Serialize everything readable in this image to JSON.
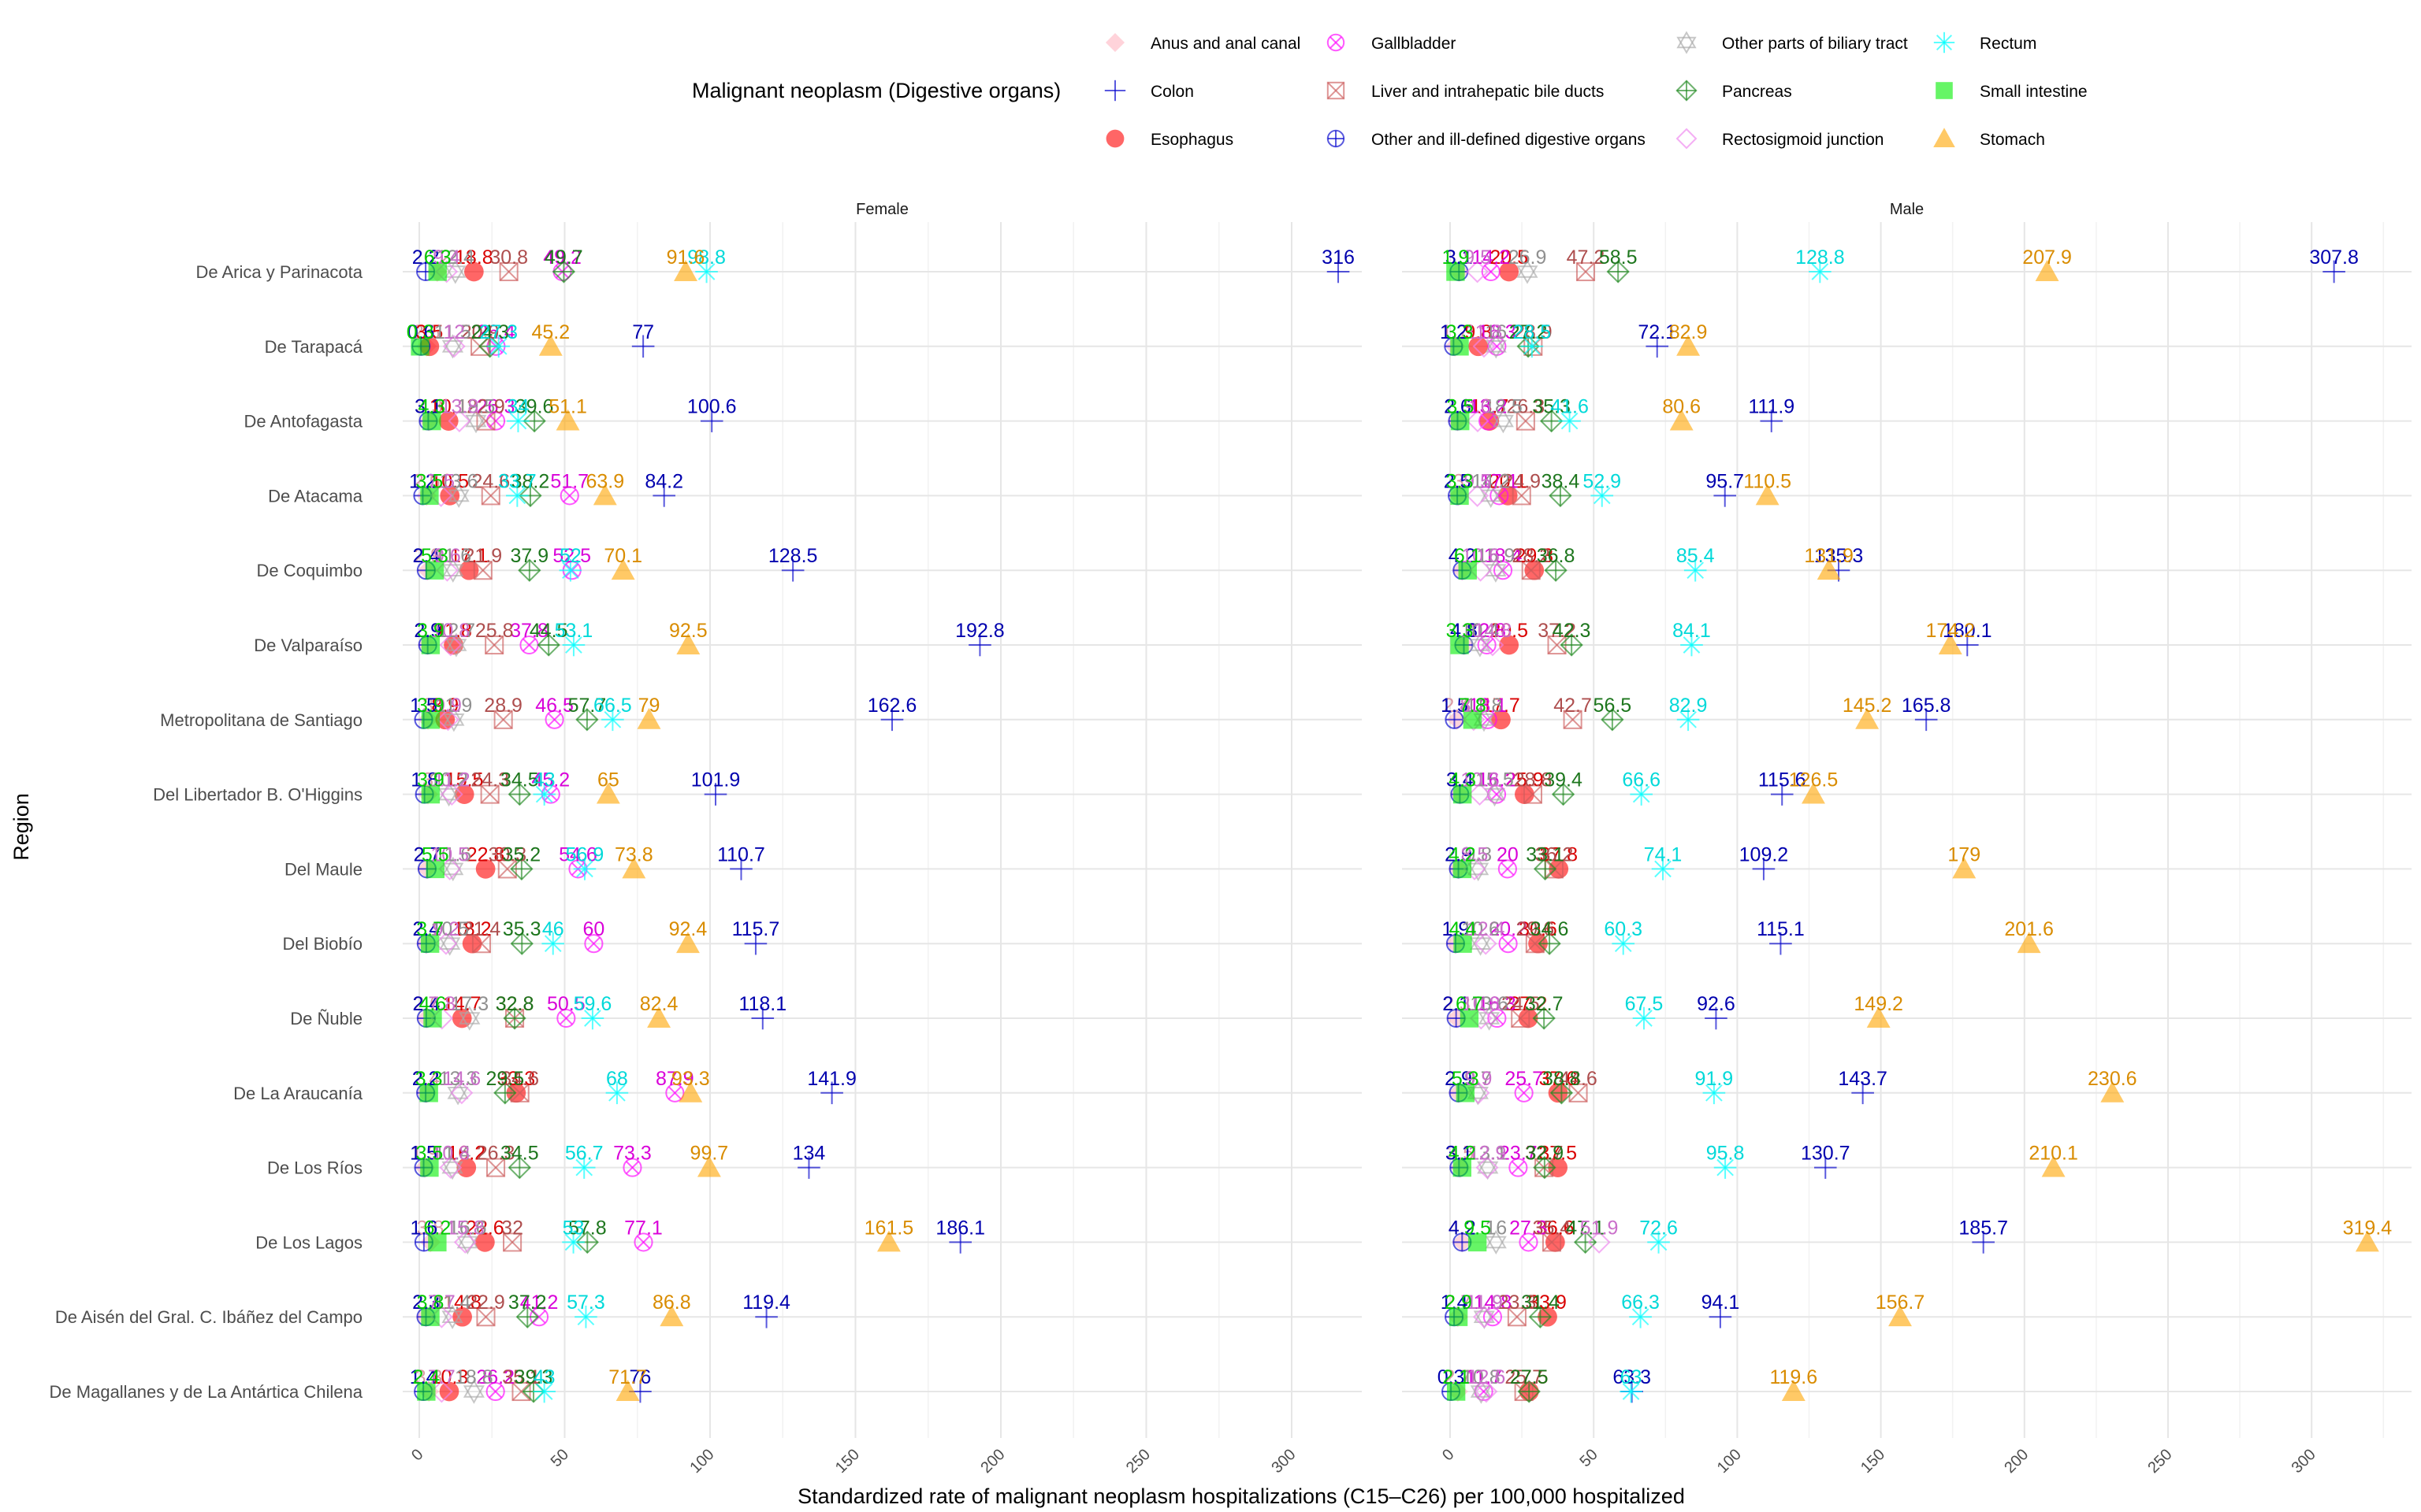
{
  "chart_data": {
    "type": "scatter",
    "title": "",
    "xlabel": "Standardized rate of malignant neoplasm hospitalizations (C15–C26) per 100,000 hospitalized",
    "ylabel": "Region",
    "xlim": [
      -8,
      330
    ],
    "xticks": [
      0,
      50,
      100,
      150,
      200,
      250,
      300
    ],
    "grid": true,
    "legend_title": "Malignant neoplasm (Digestive organs)",
    "legend_position": "top",
    "facets": [
      "Female",
      "Male"
    ],
    "regions": [
      "De Arica y Parinacota",
      "De Tarapacá",
      "De Antofagasta",
      "De Atacama",
      "De Coquimbo",
      "De Valparaíso",
      "Metropolitana de Santiago",
      "Del Libertador B. O'Higgins",
      "Del Maule",
      "Del Biobío",
      "De Ñuble",
      "De La Araucanía",
      "De Los Ríos",
      "De Los Lagos",
      "De Aisén del Gral. C. Ibáñez del Campo",
      "De Magallanes y de La Antártica Chilena"
    ],
    "series": [
      {
        "name": "Anus and anal canal",
        "color": "#ffb6c1",
        "shape": "diamond-filled",
        "Female": [
          6.2,
          2.5,
          3.3,
          2.5,
          2.9,
          2.9,
          3.0,
          3.0,
          2.7,
          2.4,
          2.6,
          2.4,
          1.9,
          3.8,
          2.3,
          3.3
        ],
        "Male": [
          3.1,
          1.7,
          2.6,
          3.0,
          4.2,
          4.8,
          2.4,
          3.4,
          2.9,
          1.9,
          2.3,
          2.9,
          3.5,
          4.2,
          2.7,
          2.7
        ]
      },
      {
        "name": "Colon",
        "color": "#0000cd",
        "shape": "plus",
        "Female": [
          316,
          77,
          100.6,
          84.2,
          128.5,
          192.8,
          162.6,
          101.9,
          110.7,
          115.7,
          118.1,
          141.9,
          134,
          186.1,
          119.4,
          76
        ],
        "Male": [
          307.8,
          72.1,
          111.9,
          95.7,
          135.3,
          180.1,
          165.8,
          115.6,
          109.2,
          115.1,
          92.6,
          143.7,
          130.7,
          185.7,
          94.1,
          63.3
        ]
      },
      {
        "name": "Esophagus",
        "color": "#ff0000",
        "shape": "circle-filled",
        "Female": [
          18.8,
          3.5,
          10.1,
          10.5,
          17.1,
          11.8,
          8.9,
          15.5,
          22.8,
          18.2,
          14.7,
          33.3,
          16.2,
          22.6,
          14.8,
          10.3
        ],
        "Male": [
          20.5,
          9.8,
          13.7,
          20.1,
          29.3,
          20.5,
          17.7,
          25.9,
          37.8,
          30.6,
          27.2,
          37.6,
          37.5,
          36.6,
          33.9,
          27.5
        ]
      },
      {
        "name": "Gallbladder",
        "color": "#ff00ff",
        "shape": "circle-x",
        "Female": [
          49.2,
          26.4,
          26.3,
          51.7,
          52.5,
          37.8,
          46.5,
          45.2,
          54.6,
          60,
          50.5,
          87.9,
          73.3,
          77.1,
          41.2,
          26.2
        ],
        "Male": [
          14.2,
          16.3,
          13.2,
          17.1,
          18.4,
          12.8,
          13.1,
          16.2,
          20,
          20.2,
          16.3,
          25.7,
          23.7,
          27.3,
          14.8,
          11.7
        ]
      },
      {
        "name": "Liver and intrahepatic bile ducts",
        "color": "#cd5c5c",
        "shape": "square-x",
        "Female": [
          30.8,
          20.9,
          22.9,
          24.6,
          21.9,
          25.8,
          28.9,
          24.3,
          30.3,
          21.4,
          32.8,
          34.6,
          26.3,
          32.0,
          22.9,
          35.1
        ],
        "Male": [
          47.2,
          28.9,
          26.3,
          24.9,
          28.2,
          37.2,
          42.7,
          28.8,
          36.2,
          29.6,
          24.5,
          44.6,
          32.7,
          35.4,
          23.3,
          25.7
        ]
      },
      {
        "name": "Other and ill-defined digestive organs",
        "color": "#0000cd",
        "shape": "circle-plus",
        "Female": [
          2.2,
          0.6,
          3.1,
          1.2,
          2.4,
          2.9,
          1.5,
          1.8,
          2.7,
          2.4,
          2.4,
          2.2,
          1.5,
          1.6,
          2.3,
          1.4
        ],
        "Male": [
          3.1,
          1.2,
          2.6,
          2.5,
          4.2,
          4.8,
          1.5,
          3.4,
          2.9,
          1.9,
          2.1,
          2.9,
          3.1,
          4.2,
          1.4,
          0.3
        ]
      },
      {
        "name": "Other parts of biliary tract",
        "color": "#a9a9a9",
        "shape": "hexagram",
        "Female": [
          12.4,
          11.5,
          19.5,
          13.6,
          11.6,
          12.7,
          11.9,
          10.2,
          11.6,
          10.5,
          17.3,
          13.3,
          11.4,
          16.6,
          11.4,
          18.8
        ],
        "Male": [
          26.9,
          16.0,
          18.5,
          14.2,
          15.9,
          10.4,
          11.8,
          15.5,
          9.8,
          10.6,
          13.6,
          9.7,
          13.1,
          16.0,
          11.9,
          10.8
        ]
      },
      {
        "name": "Pancreas",
        "color": "#228b22",
        "shape": "square-plus",
        "Female": [
          49.7,
          24.3,
          39.6,
          38.2,
          37.9,
          44.5,
          57.7,
          34.5,
          35.2,
          35.3,
          32.8,
          29.5,
          34.5,
          57.8,
          37.2,
          39.3
        ],
        "Male": [
          58.5,
          27.2,
          35.3,
          38.4,
          36.8,
          42.3,
          56.5,
          39.4,
          33.1,
          34.6,
          32.7,
          38.8,
          32.9,
          47.1,
          31.4,
          27.5
        ]
      },
      {
        "name": "Rectosigmoid junction",
        "color": "#ee82ee",
        "shape": "diamond-open",
        "Female": [
          9.4,
          12.0,
          13.8,
          7.5,
          9.6,
          10.8,
          9.9,
          11.2,
          10.5,
          9.2,
          7.8,
          14.6,
          10.8,
          15.8,
          7.7,
          7.7
        ],
        "Male": [
          9.5,
          11.8,
          9.6,
          9.5,
          10.6,
          14.8,
          8.2,
          10.3,
          8.5,
          12.4,
          10.8,
          9.9,
          12.9,
          51.9,
          11.9,
          12.6
        ]
      },
      {
        "name": "Rectum",
        "color": "#00ffff",
        "shape": "asterisk",
        "Female": [
          98.8,
          27.3,
          34.0,
          33.7,
          52.0,
          53.1,
          66.5,
          43.0,
          56.9,
          46,
          59.6,
          68,
          56.7,
          53.0,
          57.3,
          43.0
        ],
        "Male": [
          128.8,
          28.5,
          41.6,
          52.9,
          85.4,
          84.1,
          82.9,
          66.6,
          74.1,
          60.3,
          67.5,
          91.9,
          95.8,
          72.6,
          66.3,
          63.0
        ]
      },
      {
        "name": "Small intestine",
        "color": "#00ee00",
        "shape": "square-filled",
        "Female": [
          6.3,
          0.3,
          4.3,
          3.5,
          5.3,
          3.9,
          3.9,
          3.9,
          5.5,
          3.7,
          4.6,
          3.3,
          3.5,
          6.2,
          3.8,
          2.4
        ],
        "Male": [
          1.9,
          3.3,
          3.5,
          3.3,
          6.1,
          3.3,
          7.8,
          4.3,
          4.2,
          4.4,
          6.7,
          5.3,
          4.2,
          9.5,
          2.9,
          2.1
        ]
      },
      {
        "name": "Stomach",
        "color": "#ffa500",
        "shape": "triangle-filled",
        "Female": [
          91.6,
          45.2,
          51.1,
          63.9,
          70.1,
          92.5,
          79,
          65,
          73.8,
          92.4,
          82.4,
          93.3,
          99.7,
          161.5,
          86.8,
          71.7
        ],
        "Male": [
          207.9,
          82.9,
          80.6,
          110.5,
          131.9,
          174.2,
          145.2,
          126.5,
          179,
          201.6,
          149.2,
          230.6,
          210.1,
          319.4,
          156.7,
          119.6
        ]
      }
    ]
  }
}
